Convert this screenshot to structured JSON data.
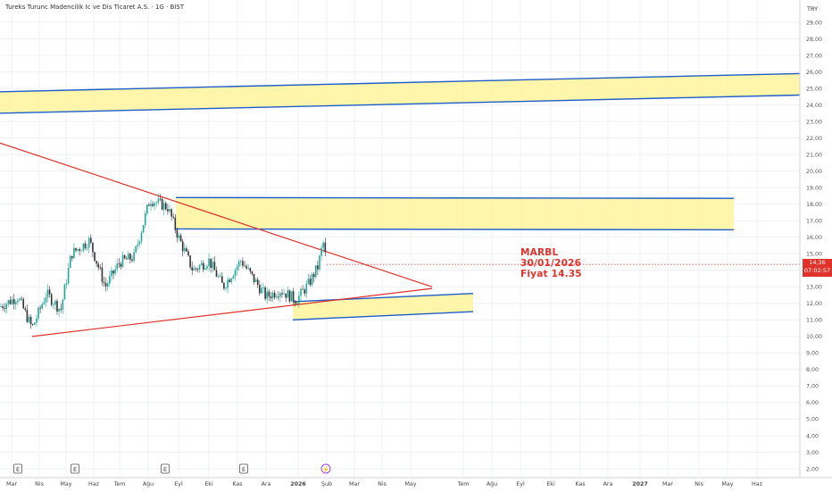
{
  "header": {
    "title": "Tureks Turunc Madencilik Ic ve Dis Ticaret A.S. · 1G · BIST"
  },
  "currency": "TRY",
  "annotation": {
    "ticker": "MARBL",
    "date": "30/01/2026",
    "price_line": "Fiyat 14.35"
  },
  "last_price": {
    "value": "14,36",
    "countdown": "07:02:57"
  },
  "colors": {
    "zone_fill": "#fff59d",
    "zone_line": "#1e5cc8",
    "trend_line": "#e0322b",
    "up": "#26a69a",
    "down": "#333333",
    "grid": "#eef0f3"
  },
  "chart_data": {
    "type": "candlestick",
    "y_range": [
      1.5,
      30
    ],
    "y_ticks": [
      "2,00",
      "3,00",
      "4,00",
      "5,00",
      "6,00",
      "7,00",
      "8,00",
      "9,00",
      "10,00",
      "11,00",
      "12,00",
      "13,00",
      "14,00",
      "15,00",
      "16,00",
      "17,00",
      "18,00",
      "19,00",
      "20,00",
      "21,00",
      "22,00",
      "23,00",
      "24,00",
      "25,00",
      "26,00",
      "27,00",
      "28,00",
      "29,00"
    ],
    "x_ticks": [
      "Mar",
      "Nis",
      "May",
      "Haz",
      "Tem",
      "Ağu",
      "Eyl",
      "Eki",
      "Kas",
      "Ara",
      "2026",
      "Şub",
      "Mar",
      "Nis",
      "May",
      "Tem",
      "Ağu",
      "Eyl",
      "Eki",
      "Kas",
      "Ara",
      "2027",
      "Mar",
      "Nis",
      "May",
      "Haz"
    ],
    "price_series": [
      {
        "period": "Mar",
        "value": 11.6
      },
      {
        "period": "Nis",
        "value": 10.5
      },
      {
        "period": "May",
        "value": 12.0
      },
      {
        "period": "Haz",
        "value": 15.5
      },
      {
        "period": "Tem",
        "value": 13.5
      },
      {
        "period": "Ağu",
        "value": 15.0
      },
      {
        "period": "Ağu",
        "value": 18.0
      },
      {
        "period": "Eyl",
        "value": 16.0
      },
      {
        "period": "Eki",
        "value": 14.0
      },
      {
        "period": "Kas",
        "value": 14.4
      },
      {
        "period": "Ara",
        "value": 12.6
      },
      {
        "period": "2026",
        "value": 12.3
      },
      {
        "period": "Şub",
        "value": 14.36
      }
    ],
    "zones": [
      {
        "name": "upper",
        "low": 23.5,
        "high": 24.8
      },
      {
        "name": "middle",
        "low": 16.5,
        "high": 18.4
      },
      {
        "name": "lower",
        "low": 11.0,
        "high": 12.1
      }
    ],
    "trendlines": [
      {
        "name": "descending",
        "from": 21.7,
        "to": 13.0
      },
      {
        "name": "ascending",
        "from": 10.0,
        "to": 12.9
      }
    ],
    "event_markers": [
      "E",
      "E",
      "E",
      "E",
      "⚡"
    ]
  }
}
